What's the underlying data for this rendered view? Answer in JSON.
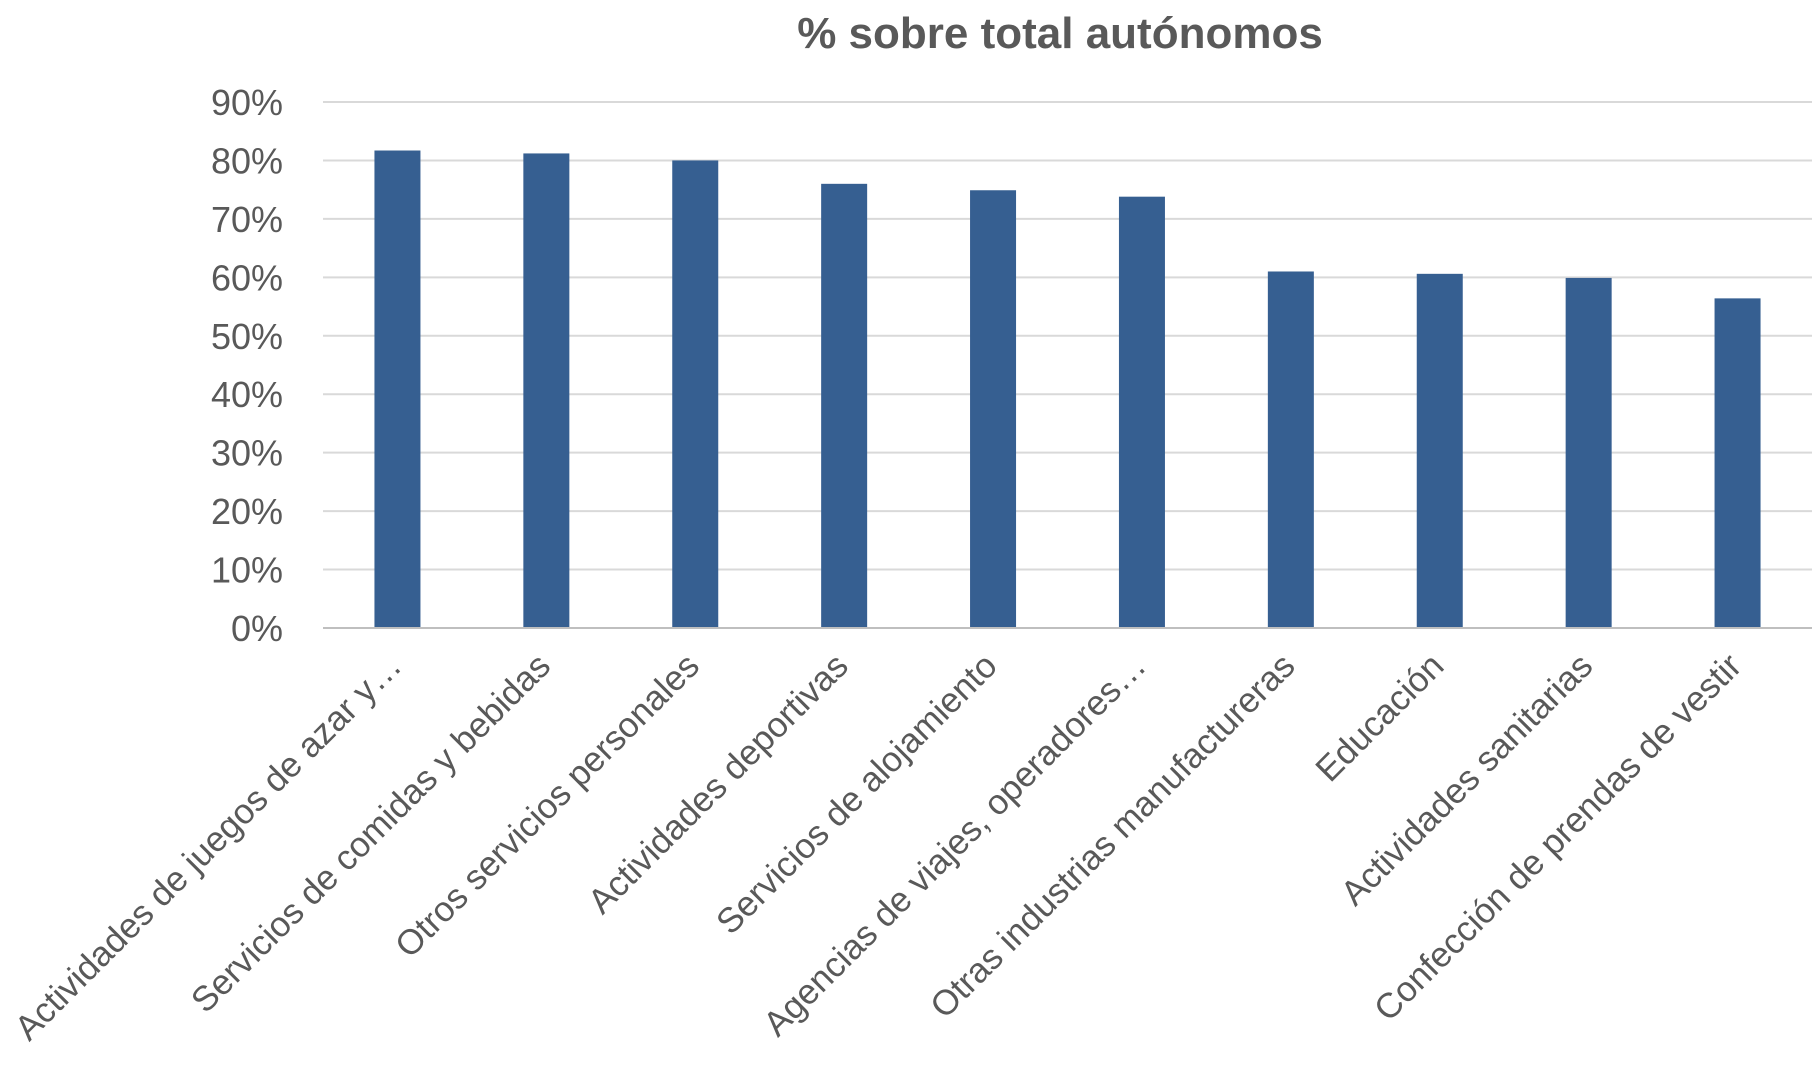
{
  "chart_data": {
    "type": "bar",
    "title": "% sobre total autónomos",
    "xlabel": "",
    "ylabel": "",
    "categories": [
      "Actividades de juegos de azar y…",
      "Servicios de comidas y bebidas",
      "Otros servicios personales",
      "Actividades deportivas",
      "Servicios de alojamiento",
      "Agencias de viajes, operadores…",
      "Otras industrias manufactureras",
      "Educación",
      "Actividades sanitarias",
      "Confección de prendas de vestir"
    ],
    "values": [
      81.7,
      81.2,
      80.0,
      76.0,
      74.9,
      73.8,
      61.0,
      60.6,
      59.9,
      56.4
    ],
    "ylim": [
      0,
      90
    ],
    "yticks": [
      "0%",
      "10%",
      "20%",
      "30%",
      "40%",
      "50%",
      "60%",
      "70%",
      "80%",
      "90%"
    ],
    "grid": true,
    "legend": "none",
    "colors": {
      "bar": "#365f91",
      "grid": "#d9d9d9",
      "text": "#595959"
    }
  }
}
